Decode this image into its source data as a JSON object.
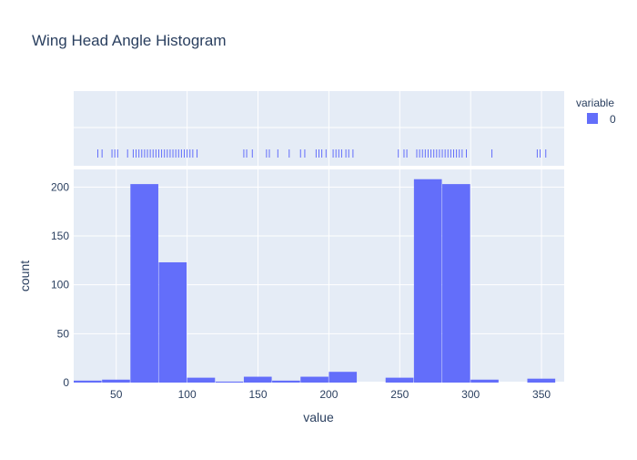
{
  "colors": {
    "bar": "#636efa",
    "plot_background": "#e5ecf6",
    "grid": "#ffffff",
    "text": "#2a3f5f"
  },
  "legend": {
    "title": "variable",
    "placement": "top-right",
    "items": [
      {
        "label": "0",
        "color": "#636efa"
      }
    ]
  },
  "chart_data": {
    "type": "bar",
    "title": "Wing Head Angle Histogram",
    "xlabel": "value",
    "ylabel": "count",
    "xlim": [
      20,
      366
    ],
    "ylim": [
      0,
      218
    ],
    "grid": true,
    "x_ticks": [
      50,
      100,
      150,
      200,
      250,
      300,
      350
    ],
    "y_ticks": [
      0,
      50,
      100,
      150,
      200
    ],
    "bin_width": 20,
    "bins": [
      {
        "start": 20,
        "end": 40,
        "count": 2
      },
      {
        "start": 40,
        "end": 60,
        "count": 3
      },
      {
        "start": 60,
        "end": 80,
        "count": 203
      },
      {
        "start": 80,
        "end": 100,
        "count": 123
      },
      {
        "start": 100,
        "end": 120,
        "count": 5
      },
      {
        "start": 120,
        "end": 140,
        "count": 1
      },
      {
        "start": 140,
        "end": 160,
        "count": 6
      },
      {
        "start": 160,
        "end": 180,
        "count": 2
      },
      {
        "start": 180,
        "end": 200,
        "count": 6
      },
      {
        "start": 200,
        "end": 220,
        "count": 11
      },
      {
        "start": 220,
        "end": 240,
        "count": 0
      },
      {
        "start": 240,
        "end": 260,
        "count": 5
      },
      {
        "start": 260,
        "end": 280,
        "count": 208
      },
      {
        "start": 280,
        "end": 300,
        "count": 203
      },
      {
        "start": 300,
        "end": 320,
        "count": 3
      },
      {
        "start": 320,
        "end": 340,
        "count": 0
      },
      {
        "start": 340,
        "end": 360,
        "count": 4
      }
    ],
    "rug": {
      "series": "0",
      "values": [
        37,
        40,
        47,
        49,
        51,
        58,
        62,
        64,
        66,
        68,
        70,
        72,
        74,
        76,
        78,
        80,
        82,
        84,
        86,
        88,
        90,
        92,
        94,
        96,
        98,
        100,
        102,
        104,
        107,
        140,
        142,
        146,
        156,
        158,
        164,
        172,
        180,
        183,
        191,
        193,
        195,
        198,
        203,
        205,
        207,
        209,
        212,
        214,
        217,
        249,
        253,
        255,
        262,
        264,
        266,
        268,
        270,
        272,
        274,
        276,
        278,
        280,
        282,
        284,
        286,
        288,
        290,
        292,
        294,
        297,
        315,
        347,
        349,
        353
      ]
    }
  }
}
